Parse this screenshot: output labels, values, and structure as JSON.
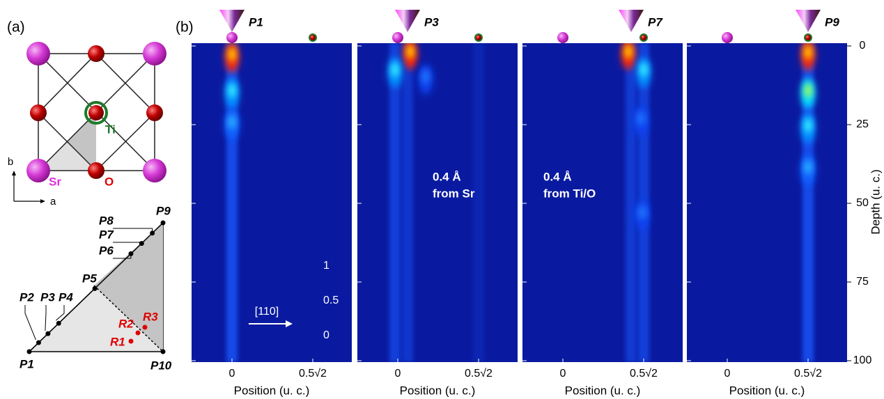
{
  "panel_labels": [
    "(a)",
    "(b)"
  ],
  "crystal": {
    "atoms": [
      "Ti",
      "Sr",
      "O"
    ],
    "axes": [
      "b",
      "a"
    ]
  },
  "triangle": {
    "points": [
      "P1",
      "P2",
      "P3",
      "P4",
      "P5",
      "P6",
      "P7",
      "P8",
      "P9",
      "P10"
    ],
    "regions": [
      "R1",
      "R2",
      "R3"
    ]
  },
  "maps": [
    {
      "probe": "P1"
    },
    {
      "probe": "P3",
      "annotation": [
        "0.4 Å",
        "from Sr"
      ]
    },
    {
      "probe": "P7",
      "annotation": [
        "0.4 Å",
        "from Ti/O"
      ]
    },
    {
      "probe": "P9"
    }
  ],
  "x_ticks": [
    "0",
    "0.5√2"
  ],
  "x_label": "Position (u. c.)",
  "y_label": "Depth (u. c.)",
  "y_ticks": [
    "0",
    "25",
    "50",
    "75",
    "100"
  ],
  "colorbar_ticks": [
    "1",
    "0.5",
    "0"
  ],
  "direction": "[110]"
}
